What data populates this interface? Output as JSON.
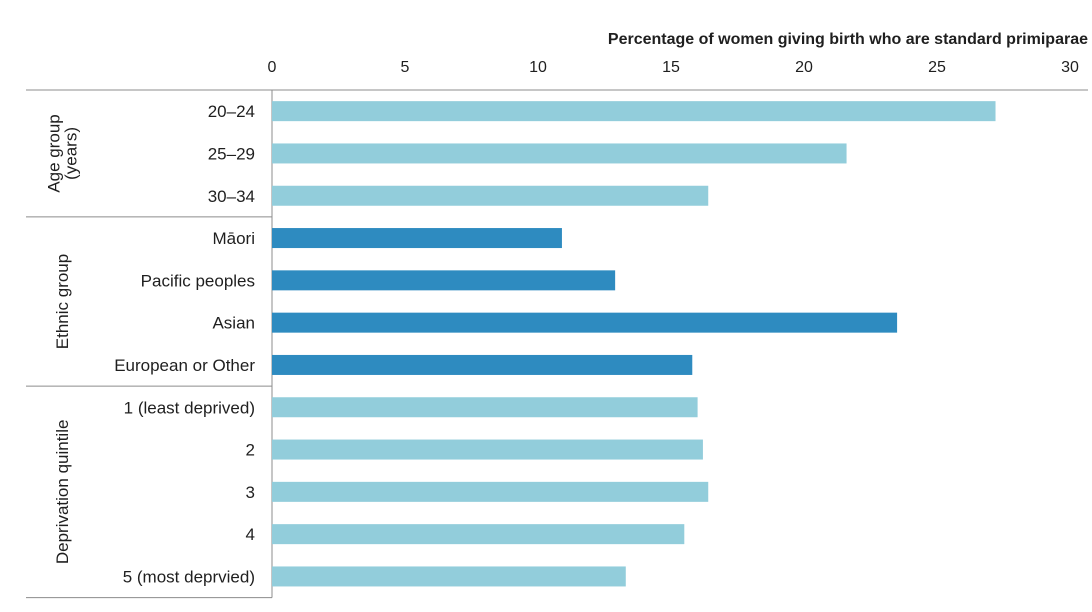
{
  "chart_data": {
    "type": "bar",
    "orientation": "horizontal",
    "title": "Percentage of women giving birth who are standard primiparae",
    "xlim": [
      0,
      30
    ],
    "xticks": [
      "0",
      "5",
      "10",
      "15",
      "20",
      "25",
      "30"
    ],
    "grid": false,
    "groups": [
      {
        "label_lines": [
          "Age group",
          "(years)"
        ],
        "color": "#92cddb",
        "categories": [
          "20–24",
          "25–29",
          "30–34"
        ],
        "values": [
          27.2,
          21.6,
          16.4
        ]
      },
      {
        "label_lines": [
          "Ethnic group"
        ],
        "color": "#2e8bc0",
        "categories": [
          "Māori",
          "Pacific peoples",
          "Asian",
          "European or Other"
        ],
        "values": [
          10.9,
          12.9,
          23.5,
          15.8
        ]
      },
      {
        "label_lines": [
          "Deprivation quintile"
        ],
        "color": "#92cddb",
        "categories": [
          "1 (least deprived)",
          "2",
          "3",
          "4",
          "5 (most deprvied)"
        ],
        "values": [
          16.0,
          16.2,
          16.4,
          15.5,
          13.3
        ]
      }
    ]
  }
}
